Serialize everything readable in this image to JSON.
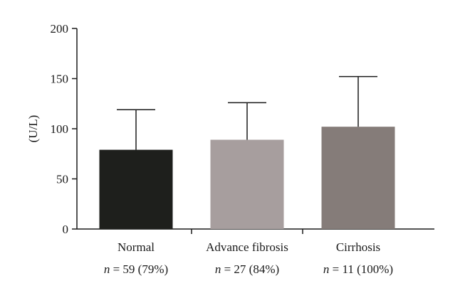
{
  "chart_data": {
    "type": "bar",
    "title": "",
    "xlabel": "",
    "ylabel": "(U/L)",
    "ylim": [
      0,
      200
    ],
    "yticks": [
      0,
      50,
      100,
      150,
      200
    ],
    "grid": false,
    "legend": "none",
    "categories": [
      "Normal",
      "Advance fibrosis",
      "Cirrhosis"
    ],
    "values": [
      79,
      89,
      102
    ],
    "error_upper": [
      119,
      126,
      152
    ],
    "n_labels": [
      {
        "prefix": "n",
        "text": " = 59 (79%)"
      },
      {
        "prefix": "n",
        "text": " = 27 (84%)"
      },
      {
        "prefix": "n",
        "text": " = 11 (100%)"
      }
    ],
    "colors": [
      "#1e1f1c",
      "#a79e9e",
      "#857c79"
    ]
  }
}
